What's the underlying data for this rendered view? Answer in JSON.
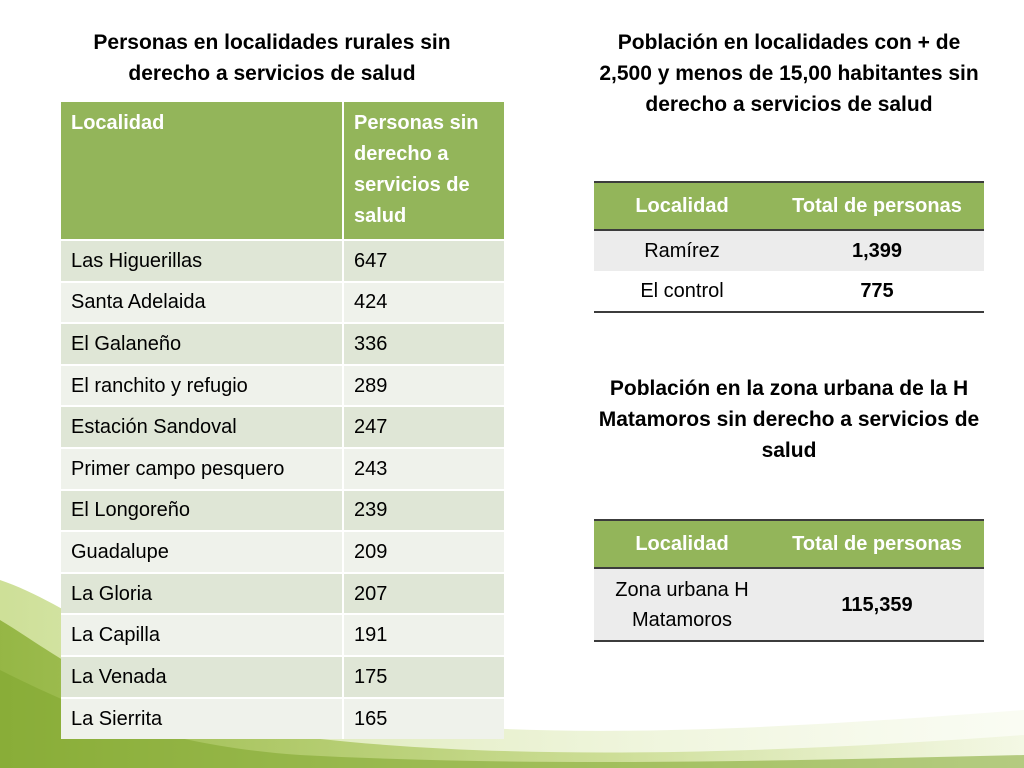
{
  "left": {
    "title": "Personas en localidades rurales sin derecho a servicios de salud",
    "headers": [
      "Localidad",
      "Personas sin derecho a servicios de salud"
    ],
    "rows": [
      [
        "Las Higuerillas",
        "647"
      ],
      [
        "Santa Adelaida",
        "424"
      ],
      [
        "El Galaneño",
        "336"
      ],
      [
        "El ranchito y refugio",
        "289"
      ],
      [
        "Estación Sandoval",
        "247"
      ],
      [
        "Primer campo pesquero",
        "243"
      ],
      [
        "El Longoreño",
        "239"
      ],
      [
        "Guadalupe",
        "209"
      ],
      [
        "La Gloria",
        "207"
      ],
      [
        "La Capilla",
        "191"
      ],
      [
        "La Venada",
        "175"
      ],
      [
        "La Sierrita",
        "165"
      ]
    ]
  },
  "right1": {
    "title": "Población en localidades con + de 2,500 y menos de 15,00 habitantes sin derecho a servicios de salud",
    "headers": [
      "Localidad",
      "Total de personas"
    ],
    "rows": [
      [
        "Ramírez",
        "1,399"
      ],
      [
        "El control",
        "775"
      ]
    ]
  },
  "right2": {
    "title": "Población en la zona urbana de la H Matamoros sin derecho a servicios de salud",
    "headers": [
      "Localidad",
      "Total de personas"
    ],
    "rows": [
      [
        "Zona urbana H Matamoros",
        "115,359"
      ]
    ]
  },
  "colors": {
    "header_green": "#93b55a",
    "row_dark": "#dfe6d6",
    "row_light": "#eff2eb",
    "decor_green": "#b7cf6a"
  }
}
